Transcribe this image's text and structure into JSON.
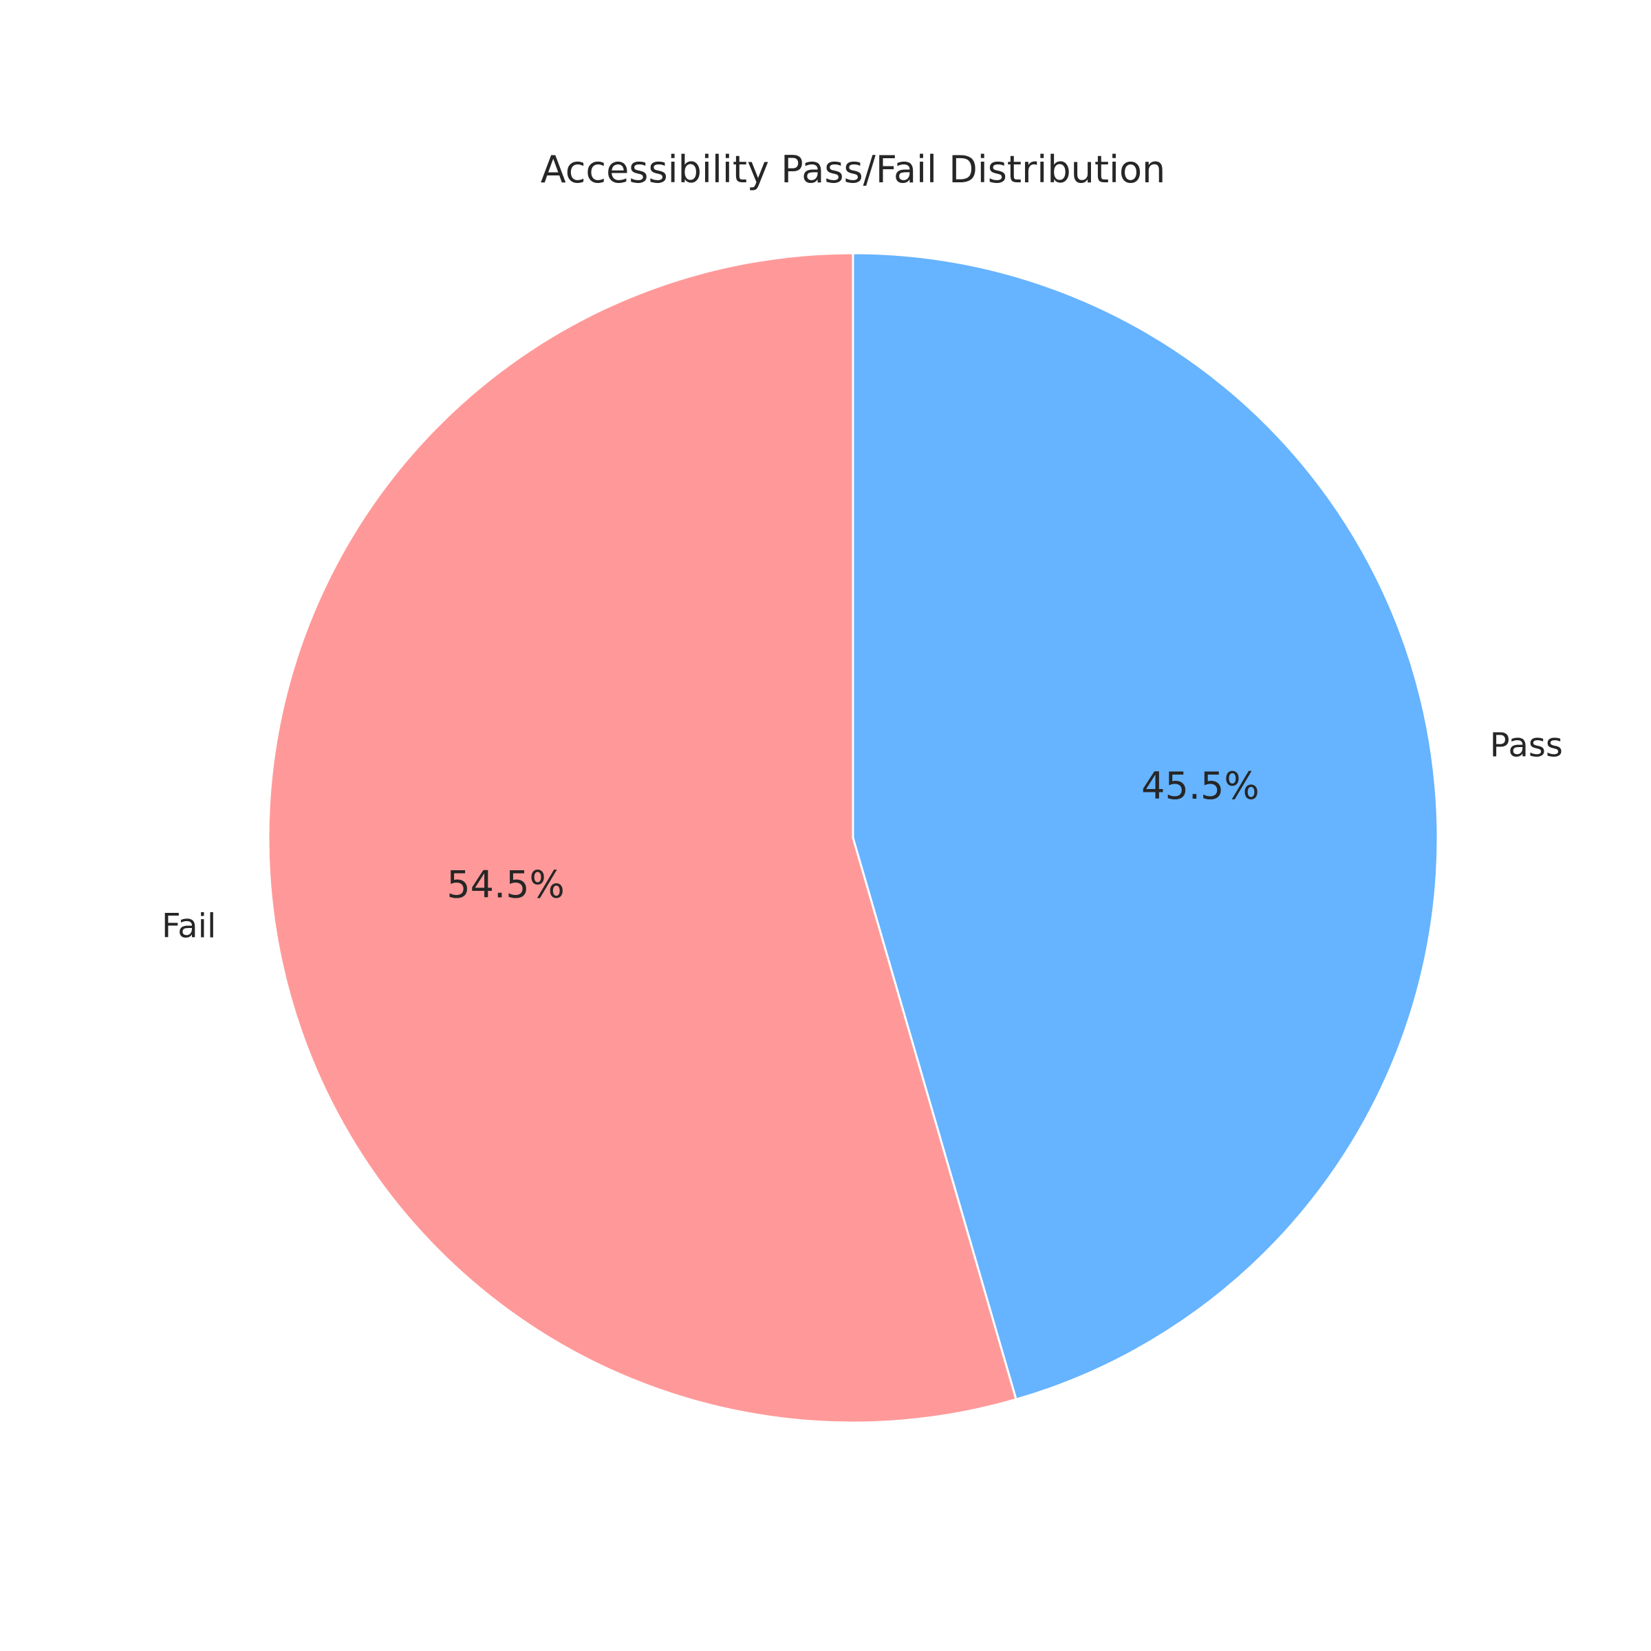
{
  "chart_data": {
    "type": "pie",
    "title": "Accessibility Pass/Fail Distribution",
    "categories": [
      "Pass",
      "Fail"
    ],
    "values": [
      45.5,
      54.5
    ],
    "value_labels": [
      "45.5%",
      "54.5%"
    ],
    "colors": [
      "#66b3ff",
      "#ff9999"
    ],
    "edge_color": "#ffffff",
    "start": "top",
    "direction": "clockwise"
  }
}
